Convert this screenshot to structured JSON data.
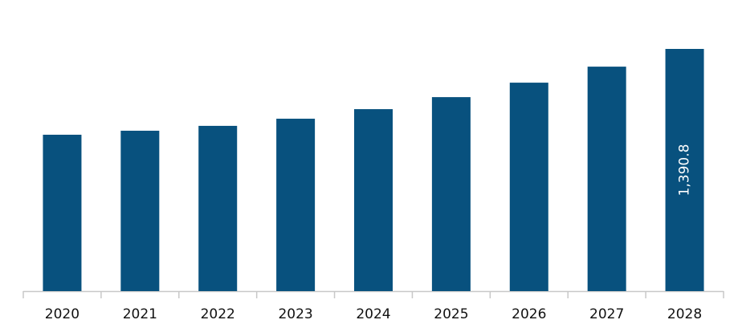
{
  "chart_data": {
    "type": "bar",
    "categories": [
      "2020",
      "2021",
      "2022",
      "2023",
      "2024",
      "2025",
      "2026",
      "2027",
      "2028"
    ],
    "values": [
      898,
      921,
      949,
      990,
      1045,
      1114,
      1197,
      1289,
      1390.8
    ],
    "value_labels": [
      null,
      null,
      null,
      null,
      null,
      null,
      null,
      null,
      "1,390.8"
    ],
    "color": "#08517e"
  }
}
